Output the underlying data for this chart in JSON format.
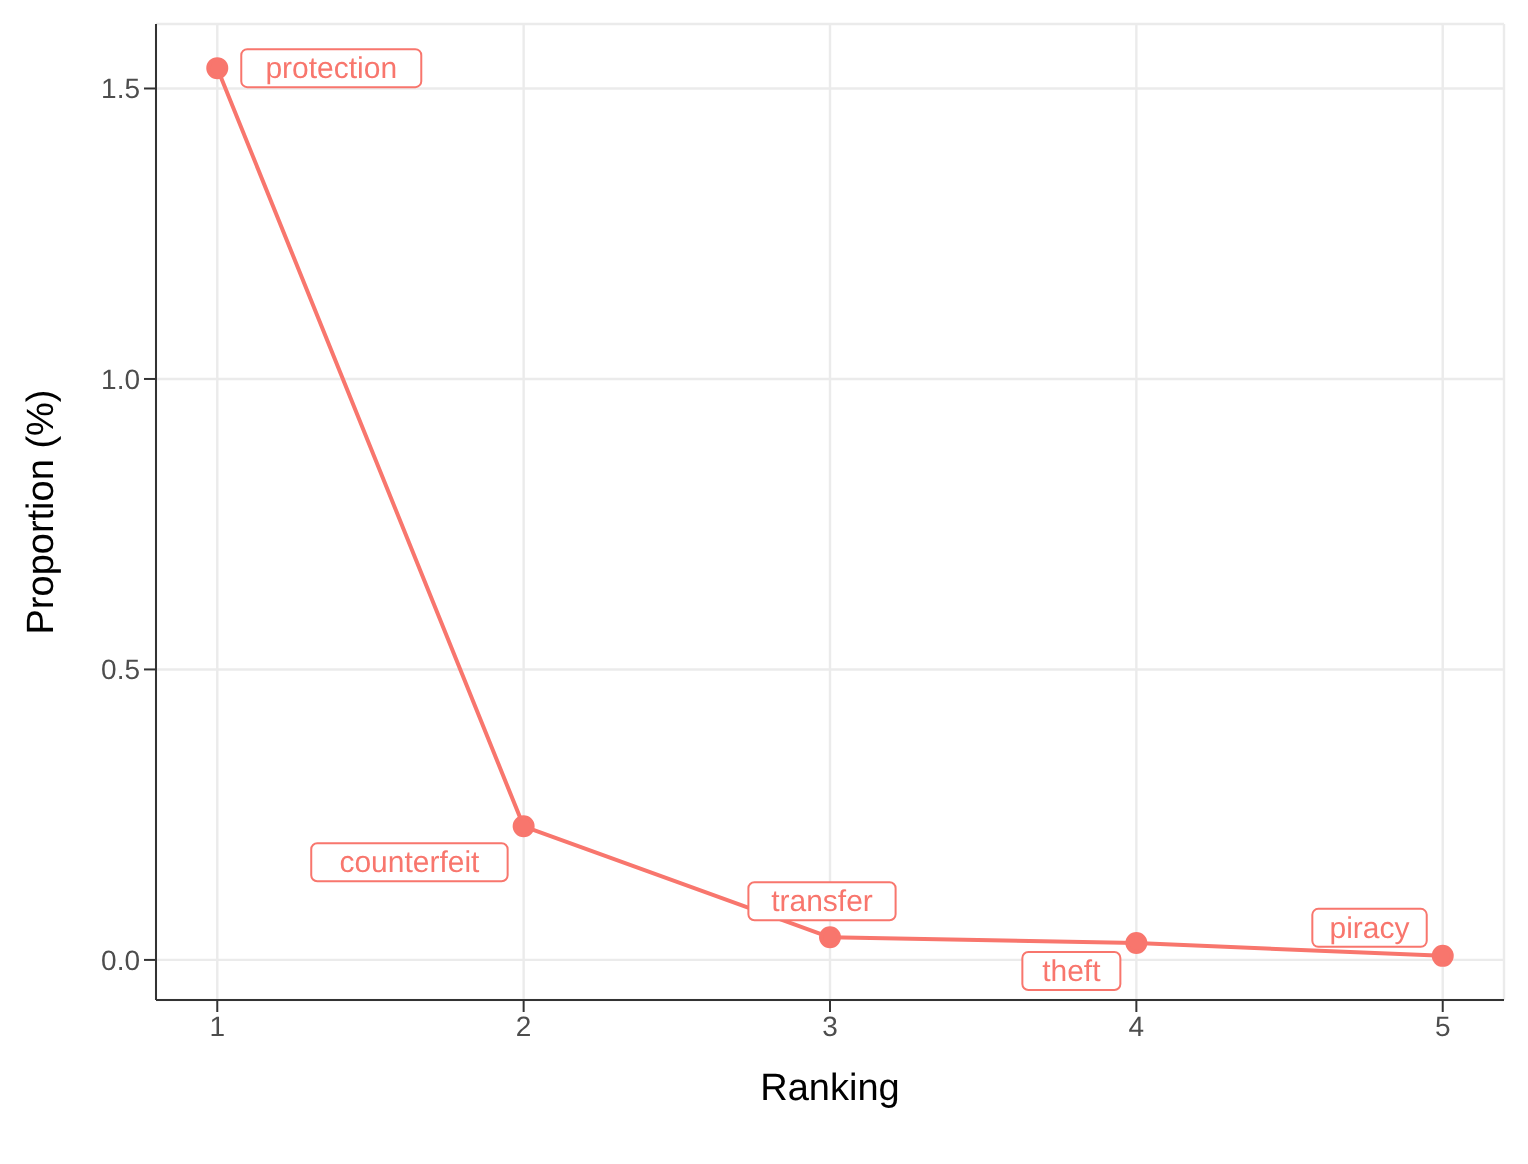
{
  "chart_data": {
    "type": "line",
    "xlabel": "Ranking",
    "ylabel": "Proportion (%)",
    "x": [
      1,
      2,
      3,
      4,
      5
    ],
    "series": [
      {
        "color": "#f8766d",
        "values": [
          1.535,
          0.23,
          0.039,
          0.029,
          0.007
        ]
      }
    ],
    "xlim": [
      0.8,
      5.2
    ],
    "xticks": [
      1,
      2,
      3,
      4,
      5
    ],
    "ylim": [
      -0.069,
      1.611
    ],
    "yticks": [
      {
        "value": 0,
        "label": "0.0"
      },
      {
        "value": 0.5,
        "label": "0.5"
      },
      {
        "value": 1,
        "label": "1.0"
      },
      {
        "value": 1.5,
        "label": "1.5"
      }
    ],
    "grid": true,
    "marker": "circle",
    "line_style": "solid",
    "annotations": [
      {
        "text": "protection",
        "x": 1,
        "y": 1.535
      },
      {
        "text": "counterfeit",
        "x": 2,
        "y": 0.23
      },
      {
        "text": "transfer",
        "x": 3,
        "y": 0.039
      },
      {
        "text": "theft",
        "x": 4,
        "y": 0.029
      },
      {
        "text": "piracy",
        "x": 5,
        "y": 0.007
      }
    ]
  }
}
